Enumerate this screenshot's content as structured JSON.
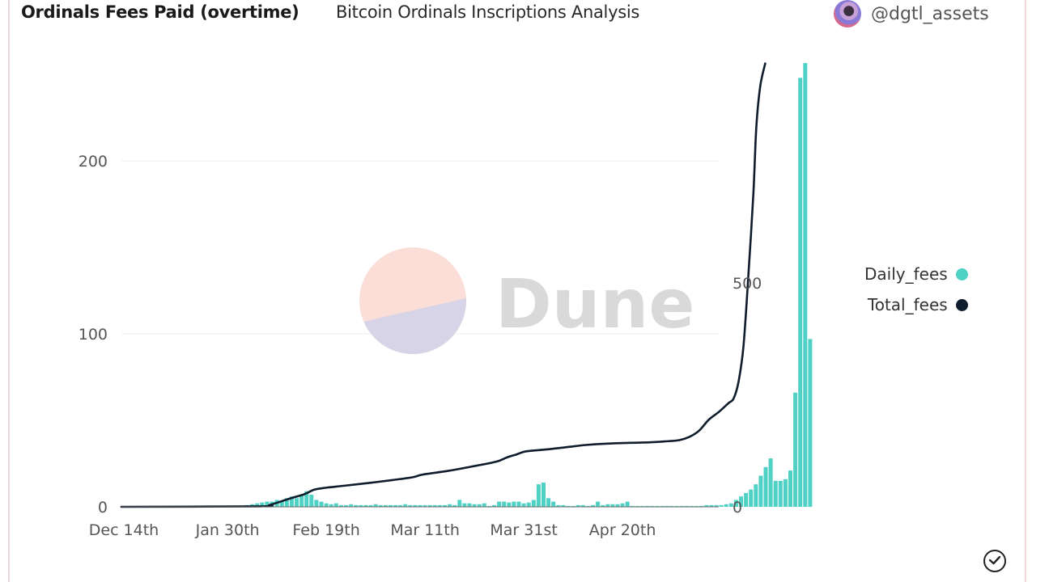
{
  "header": {
    "title": "Ordinals Fees Paid (overtime)",
    "subtitle": "Bitcoin Ordinals Inscriptions Analysis",
    "author": "@dgtl_assets"
  },
  "watermark": {
    "text": "Dune",
    "colors": {
      "top": "#fcded9",
      "bottom": "#d6d4e6"
    }
  },
  "footer": {
    "icon": "check-circle-icon"
  },
  "colors": {
    "daily": "#4fd1c5",
    "total": "#0f1c2b",
    "grid": "#eeeeee"
  },
  "chart_data": {
    "type": "bar+line",
    "title": "Ordinals Fees Paid (overtime)",
    "subtitle": "Bitcoin Ordinals Inscriptions Analysis",
    "xlabel": "",
    "x_start": "Dec 14th",
    "x_days": 152,
    "x_ticks": [
      {
        "label": "Dec 14th",
        "day": 0
      },
      {
        "label": "Jan 30th",
        "day": 21
      },
      {
        "label": "Feb 19th",
        "day": 41
      },
      {
        "label": "Mar 11th",
        "day": 61
      },
      {
        "label": "Mar 31st",
        "day": 81
      },
      {
        "label": "Apr 20th",
        "day": 101
      }
    ],
    "y_left": {
      "label": "Daily_fees",
      "ticks": [
        0,
        100,
        200
      ],
      "range": [
        0,
        260
      ]
    },
    "y_right": {
      "label": "Total_fees",
      "ticks": [
        0,
        500
      ],
      "range": [
        0,
        1000
      ]
    },
    "grid": true,
    "legend": {
      "position": "right",
      "entries": [
        {
          "name": "Daily_fees",
          "color": "#4fd1c5"
        },
        {
          "name": "Total_fees",
          "color": "#0f1c2b"
        }
      ]
    },
    "series": [
      {
        "name": "Daily_fees",
        "type": "bar",
        "axis": "left",
        "values": [
          0,
          0,
          0,
          0,
          0,
          0,
          0,
          0,
          0,
          0,
          0,
          0,
          0,
          0,
          0,
          0,
          0,
          0,
          0,
          0,
          0,
          0,
          0,
          0,
          0.5,
          1,
          1.5,
          2,
          2.5,
          3,
          3,
          4,
          3,
          5,
          6,
          5,
          7,
          9,
          7,
          4,
          3,
          2,
          1.5,
          2,
          1,
          1,
          1.5,
          1,
          1,
          1,
          1,
          1.5,
          1,
          1,
          1,
          1,
          1,
          1.5,
          1,
          1,
          1,
          1,
          1,
          1,
          1,
          1,
          1.5,
          1,
          4,
          2,
          2,
          1.5,
          1.5,
          2,
          0.5,
          1,
          3,
          3,
          2.5,
          3,
          3,
          2,
          2.5,
          4,
          13,
          14,
          5,
          3,
          1,
          1,
          0.5,
          0.5,
          1,
          1,
          0.5,
          1,
          3,
          1,
          1.5,
          1.5,
          1.5,
          2,
          3,
          0.5,
          0.5,
          0.5,
          0.5,
          0.5,
          0.5,
          0.5,
          0.5,
          0.5,
          0.5,
          0.5,
          0.5,
          0.5,
          0.5,
          0.5,
          1,
          1,
          1,
          1,
          1.5,
          2,
          4,
          6,
          8,
          10,
          13,
          18,
          23,
          28,
          15,
          15,
          16,
          21,
          66,
          248,
          262,
          97
        ]
      },
      {
        "name": "Total_fees",
        "type": "line",
        "axis": "right",
        "points": [
          [
            0,
            0
          ],
          [
            28,
            1
          ],
          [
            30,
            4
          ],
          [
            34,
            18
          ],
          [
            37,
            28
          ],
          [
            39,
            38
          ],
          [
            41,
            42
          ],
          [
            45,
            47
          ],
          [
            50,
            53
          ],
          [
            55,
            60
          ],
          [
            59,
            66
          ],
          [
            61,
            72
          ],
          [
            66,
            80
          ],
          [
            71,
            90
          ],
          [
            76,
            101
          ],
          [
            78,
            110
          ],
          [
            80,
            117
          ],
          [
            82,
            124
          ],
          [
            86,
            128
          ],
          [
            90,
            133
          ],
          [
            94,
            138
          ],
          [
            98,
            141
          ],
          [
            103,
            143
          ],
          [
            107,
            144
          ],
          [
            110,
            146
          ],
          [
            113,
            149
          ],
          [
            115,
            156
          ],
          [
            117,
            170
          ],
          [
            119,
            195
          ],
          [
            121,
            212
          ],
          [
            123,
            232
          ],
          [
            124,
            242
          ],
          [
            125,
            280
          ],
          [
            126,
            360
          ],
          [
            127,
            520
          ],
          [
            128,
            700
          ],
          [
            128.6,
            850
          ],
          [
            129.4,
            940
          ],
          [
            130.4,
            990
          ]
        ]
      }
    ]
  }
}
